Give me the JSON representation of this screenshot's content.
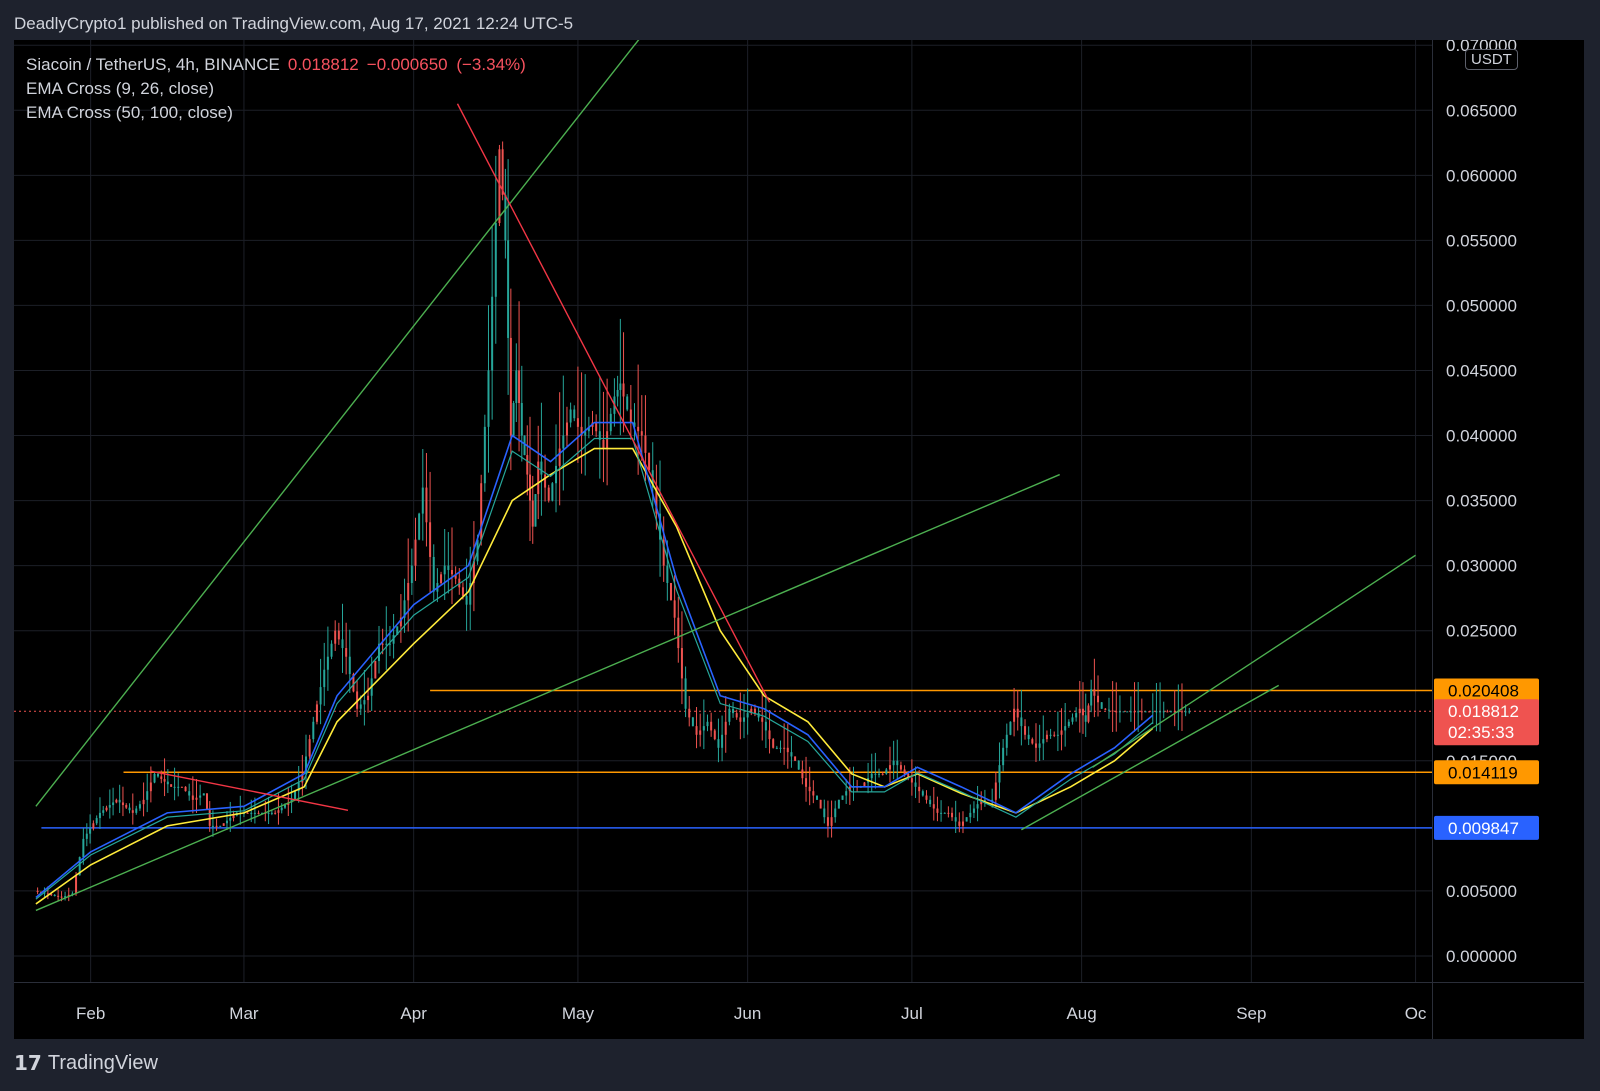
{
  "header": {
    "published_by": "DeadlyCrypto1 published on TradingView.com, Aug 17, 2021 12:24 UTC-5"
  },
  "legend": {
    "symbol": "Siacoin / TetherUS, 4h, BINANCE",
    "last": "0.018812",
    "change": "−0.000650",
    "change_pct": "(−3.34%)",
    "indicators": [
      "EMA Cross (9, 26, close)",
      "EMA Cross (50, 100, close)"
    ]
  },
  "axis": {
    "unit": "USDT"
  },
  "footer": {
    "logo": "17",
    "brand": "TradingView"
  },
  "colors": {
    "background": "#000000",
    "frame": "#1e222d",
    "grid": "#1c1f27",
    "trendline_green": "#4caf50",
    "trendline_red": "#f23645",
    "level_orange": "#ff9800",
    "level_blue": "#2962ff",
    "candle_up": "#26a69a",
    "candle_down": "#ef5350",
    "ema_9": "#26a69a",
    "ema_26": "#2962ff",
    "ema_50": "#ffeb3b"
  },
  "chart_data": {
    "type": "line",
    "title": "Siacoin / TetherUS, 4h, BINANCE",
    "ylabel": "USDT",
    "ylim": [
      -0.002,
      0.0704
    ],
    "y_ticks": [
      "0.000000",
      "0.005000",
      "0.015000",
      "0.025000",
      "0.030000",
      "0.035000",
      "0.040000",
      "0.045000",
      "0.050000",
      "0.055000",
      "0.060000",
      "0.065000",
      "0.070000"
    ],
    "x_ticks": [
      {
        "label": "Feb",
        "day": 31
      },
      {
        "label": "Mar",
        "day": 59
      },
      {
        "label": "Apr",
        "day": 90
      },
      {
        "label": "May",
        "day": 120
      },
      {
        "label": "Jun",
        "day": 151
      },
      {
        "label": "Jul",
        "day": 181
      },
      {
        "label": "Aug",
        "day": 212
      },
      {
        "label": "Sep",
        "day": 243
      },
      {
        "label": "Oc",
        "day": 273
      }
    ],
    "price_series": {
      "name": "SC/USDT",
      "day": [
        21,
        26,
        28,
        30,
        33,
        36,
        39,
        41,
        43,
        46,
        48,
        50,
        52,
        53,
        55,
        58,
        62,
        65,
        68,
        70,
        72,
        74,
        76,
        78,
        80,
        82,
        84,
        86,
        88,
        90,
        92,
        94,
        96,
        98,
        100,
        102,
        104,
        106,
        107,
        108,
        109,
        110,
        111,
        112,
        113,
        115,
        117,
        119,
        121,
        123,
        125,
        127,
        128,
        130,
        132,
        134,
        136,
        138,
        140,
        142,
        144,
        146,
        148,
        150,
        152,
        154,
        156,
        158,
        160,
        162,
        164,
        166,
        168,
        170,
        172,
        174,
        176,
        178,
        180,
        182,
        184,
        186,
        188,
        190,
        192,
        194,
        196,
        198,
        200,
        202,
        204,
        206,
        208,
        210,
        212,
        213,
        214,
        216,
        218,
        220,
        222,
        224,
        226,
        228,
        230,
        232
      ],
      "close": [
        0.005,
        0.0045,
        0.0048,
        0.009,
        0.011,
        0.012,
        0.011,
        0.012,
        0.014,
        0.013,
        0.013,
        0.012,
        0.0125,
        0.01,
        0.01,
        0.011,
        0.011,
        0.011,
        0.012,
        0.014,
        0.018,
        0.022,
        0.025,
        0.023,
        0.019,
        0.02,
        0.024,
        0.024,
        0.026,
        0.03,
        0.036,
        0.028,
        0.03,
        0.029,
        0.027,
        0.032,
        0.045,
        0.062,
        0.055,
        0.04,
        0.045,
        0.04,
        0.037,
        0.033,
        0.038,
        0.035,
        0.039,
        0.042,
        0.04,
        0.041,
        0.039,
        0.043,
        0.044,
        0.041,
        0.04,
        0.036,
        0.03,
        0.026,
        0.019,
        0.017,
        0.018,
        0.016,
        0.019,
        0.018,
        0.019,
        0.018,
        0.016,
        0.016,
        0.015,
        0.013,
        0.012,
        0.01,
        0.012,
        0.013,
        0.013,
        0.014,
        0.014,
        0.015,
        0.014,
        0.013,
        0.012,
        0.011,
        0.011,
        0.01,
        0.011,
        0.012,
        0.012,
        0.016,
        0.019,
        0.017,
        0.016,
        0.017,
        0.017,
        0.018,
        0.019,
        0.018,
        0.0205,
        0.019,
        0.0188,
        0.0188,
        0.0188,
        0.0188,
        0.0188,
        0.0188,
        0.0188,
        0.0188
      ]
    },
    "ema_series": [
      {
        "name": "EMA Cross (50, 100, close)",
        "day": [
          21,
          31,
          45,
          59,
          70,
          76,
          90,
          100,
          108,
          115,
          123,
          130,
          138,
          146,
          154,
          162,
          170,
          176,
          182,
          190,
          200,
          210,
          218,
          225
        ],
        "values": [
          0.004,
          0.007,
          0.01,
          0.011,
          0.013,
          0.018,
          0.024,
          0.028,
          0.035,
          0.037,
          0.039,
          0.039,
          0.033,
          0.025,
          0.02,
          0.018,
          0.014,
          0.013,
          0.014,
          0.0125,
          0.011,
          0.013,
          0.015,
          0.0175
        ]
      },
      {
        "name": "EMA Cross (9, 26, close)",
        "day": [
          21,
          31,
          45,
          59,
          70,
          76,
          90,
          100,
          108,
          115,
          123,
          130,
          138,
          146,
          154,
          162,
          170,
          176,
          182,
          190,
          200,
          210,
          218,
          225
        ],
        "values": [
          0.0045,
          0.008,
          0.011,
          0.0115,
          0.014,
          0.02,
          0.027,
          0.03,
          0.04,
          0.038,
          0.041,
          0.041,
          0.029,
          0.02,
          0.019,
          0.017,
          0.013,
          0.013,
          0.0145,
          0.013,
          0.011,
          0.014,
          0.016,
          0.0185
        ]
      }
    ],
    "trendlines": [
      {
        "color": "green",
        "from": {
          "day": 21,
          "price": 0.0115
        },
        "to": {
          "day": 132,
          "price": 0.0709
        }
      },
      {
        "color": "green",
        "from": {
          "day": 21,
          "price": 0.0035
        },
        "to": {
          "day": 208,
          "price": 0.037
        }
      },
      {
        "color": "green",
        "from": {
          "day": 201,
          "price": 0.0097
        },
        "to": {
          "day": 248,
          "price": 0.0208
        }
      },
      {
        "color": "green",
        "from": {
          "day": 214,
          "price": 0.0145
        },
        "to": {
          "day": 273,
          "price": 0.0308
        }
      },
      {
        "color": "red",
        "from": {
          "day": 98,
          "price": 0.0655
        },
        "to": {
          "day": 155,
          "price": 0.0195
        }
      },
      {
        "color": "red",
        "from": {
          "day": 42,
          "price": 0.0142
        },
        "to": {
          "day": 78,
          "price": 0.0112
        }
      }
    ],
    "levels": [
      {
        "label": "0.020408",
        "value": 0.020408,
        "color": "orange"
      },
      {
        "label": "0.014119",
        "value": 0.014119,
        "color": "orange"
      },
      {
        "label": "0.009847",
        "value": 0.009847,
        "color": "blue"
      }
    ],
    "last_price": {
      "label": "0.018812",
      "value": 0.018812,
      "countdown": "02:35:33"
    }
  }
}
